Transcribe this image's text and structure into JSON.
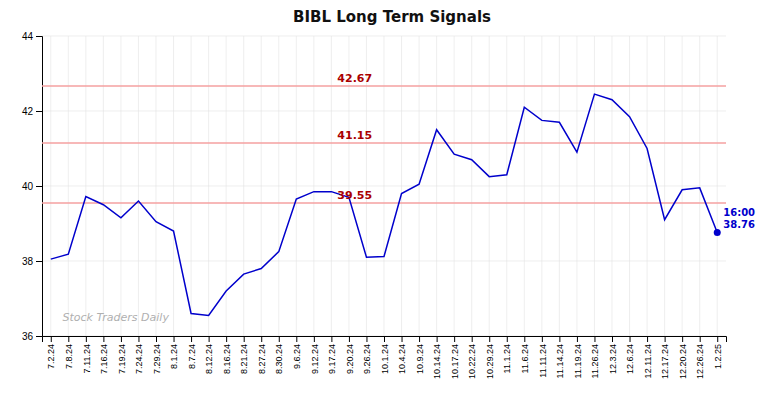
{
  "chart_data": {
    "type": "line",
    "title": "BIBL Long Term Signals",
    "categories": [
      "7.2.24",
      "7.8.24",
      "7.11.24",
      "7.16.24",
      "7.19.24",
      "7.24.24",
      "7.29.24",
      "8.1.24",
      "8.7.24",
      "8.12.24",
      "8.16.24",
      "8.21.24",
      "8.27.24",
      "8.30.24",
      "9.6.24",
      "9.12.24",
      "9.17.24",
      "9.20.24",
      "9.26.24",
      "10.1.24",
      "10.4.24",
      "10.9.24",
      "10.14.24",
      "10.17.24",
      "10.22.24",
      "10.29.24",
      "11.1.24",
      "11.6.24",
      "11.11.24",
      "11.14.24",
      "11.19.24",
      "11.26.24",
      "12.3.24",
      "12.6.24",
      "12.11.24",
      "12.17.24",
      "12.20.24",
      "12.26.24",
      "1.2.25"
    ],
    "values": [
      38.05,
      38.18,
      39.72,
      39.5,
      39.15,
      39.6,
      39.05,
      38.8,
      36.6,
      36.55,
      37.2,
      37.65,
      37.8,
      38.25,
      39.65,
      39.85,
      39.85,
      39.7,
      38.1,
      38.12,
      39.8,
      40.05,
      41.5,
      40.85,
      40.7,
      40.25,
      40.3,
      42.1,
      41.75,
      41.7,
      40.9,
      42.45,
      42.3,
      41.85,
      41.0,
      39.1,
      39.9,
      39.95,
      38.76
    ],
    "color": "#0000cc",
    "ylim": [
      36,
      44
    ],
    "yticks": [
      36,
      38,
      40,
      42,
      44
    ],
    "grid": true,
    "reference_lines": {
      "values": [
        42.67,
        41.15,
        39.55
      ],
      "color": "#f5a0a0",
      "label_color": "#aa0000"
    },
    "last_point": {
      "label": "16:00",
      "value": 38.76
    },
    "watermark": "Stock Traders Daily"
  }
}
